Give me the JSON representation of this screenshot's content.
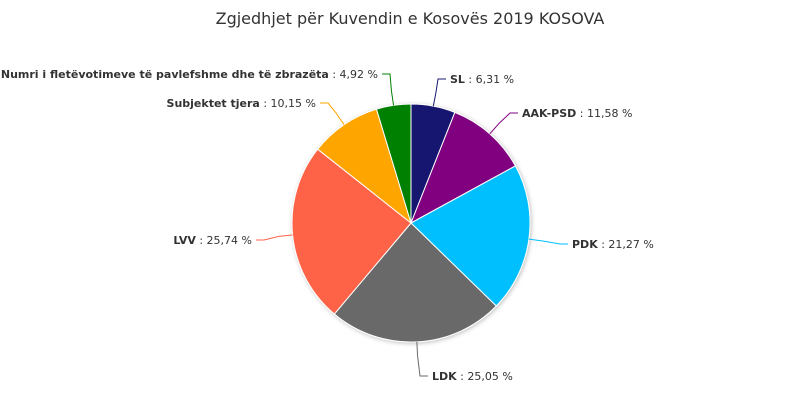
{
  "chart_data": {
    "type": "pie",
    "title": "Zgjedhjet për Kuvendin e Kosovës 2019 KOSOVA",
    "slices": [
      {
        "name": "SL",
        "value": 6.31,
        "display": "6,31 %",
        "color": "#191970"
      },
      {
        "name": "AAK-PSD",
        "value": 11.58,
        "display": "11,58 %",
        "color": "#800080"
      },
      {
        "name": "PDK",
        "value": 21.27,
        "display": "21,27 %",
        "color": "#00bfff"
      },
      {
        "name": "LDK",
        "value": 25.05,
        "display": "25,05 %",
        "color": "#696969"
      },
      {
        "name": "LVV",
        "value": 25.74,
        "display": "25,74 %",
        "color": "#ff6347"
      },
      {
        "name": "Subjektet tjera",
        "value": 10.15,
        "display": "10,15 %",
        "color": "#ffa500"
      },
      {
        "name": "Numri i fletëvotimeve të pavlefshme dhe të zbrazëta",
        "value": 4.92,
        "display": "4,92 %",
        "color": "#008000"
      }
    ]
  }
}
